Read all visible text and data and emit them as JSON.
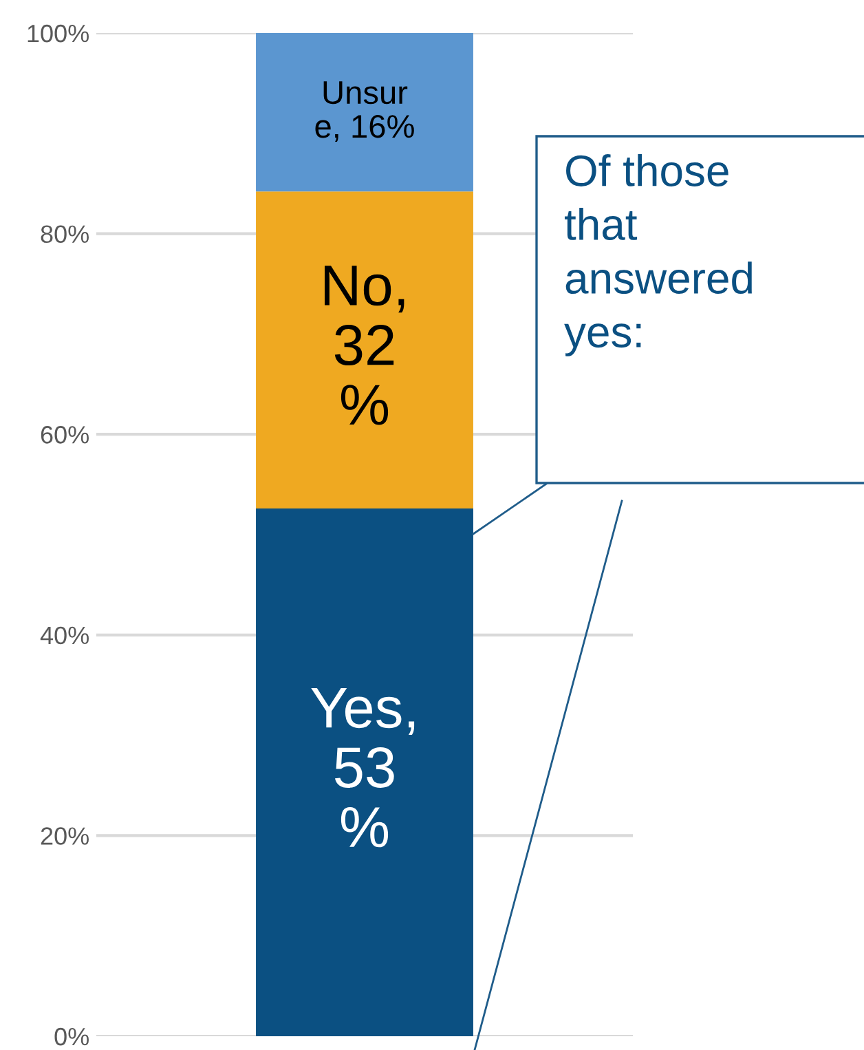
{
  "chart_data": {
    "type": "bar",
    "stacked": true,
    "categories": [
      null
    ],
    "series": [
      {
        "color": "#0b5082",
        "values": [
          52.6
        ],
        "value_labels": [
          "Yes,\n53\n%"
        ]
      },
      {
        "color": "#efa921",
        "values": [
          31.6
        ],
        "value_labels": [
          "No,\n32\n%"
        ]
      },
      {
        "color": "#5b96d0",
        "values": [
          15.8
        ],
        "value_labels": [
          "Unsur\ne, 16%"
        ]
      }
    ],
    "ylim": [
      0,
      100
    ],
    "yticks": [
      {
        "value": 0,
        "label": "0%"
      },
      {
        "value": 20,
        "label": "20%"
      },
      {
        "value": 40,
        "label": "40%"
      },
      {
        "value": 60,
        "label": "60%"
      },
      {
        "value": 80,
        "label": "80%"
      },
      {
        "value": 100,
        "label": "100%"
      }
    ],
    "grid": "y",
    "legend": false,
    "annotations": [
      "Of those\nthat\nanswered\nyes:"
    ]
  }
}
